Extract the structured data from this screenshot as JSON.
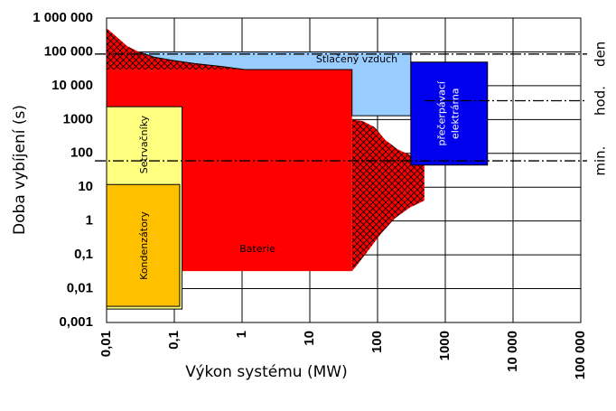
{
  "chart_data": {
    "type": "region",
    "x_label": "Výkon systému (MW)",
    "y_label": "Doba vybíjení (s)",
    "log_x": true,
    "log_y": true,
    "grid": true,
    "xlim": [
      0.01,
      100000
    ],
    "ylim": [
      0.001,
      1000000
    ],
    "xticks": [
      {
        "value": 0.01,
        "label": "0,01"
      },
      {
        "value": 0.1,
        "label": "0,1"
      },
      1,
      10,
      100,
      1000,
      {
        "value": 10000,
        "label": "10 000"
      },
      {
        "value": 100000,
        "label": "100 000"
      }
    ],
    "yticks": [
      {
        "value": 0.001,
        "label": "0,001"
      },
      {
        "value": 0.01,
        "label": "0,01"
      },
      {
        "value": 0.1,
        "label": "0,1"
      },
      1,
      10,
      100,
      1000,
      {
        "value": 10000,
        "label": "10 000"
      },
      {
        "value": 100000,
        "label": "100 000"
      },
      {
        "value": 1000000,
        "label": "1 000 000"
      }
    ],
    "regions": [
      {
        "color": "#ff0000",
        "hatch": true,
        "x": [
          0.01,
          0.015,
          0.02,
          0.03,
          0.05,
          0.1,
          0.2,
          0.5,
          1.1,
          0.01
        ],
        "y": [
          500000,
          250000,
          150000,
          100000,
          70000,
          55000,
          45000,
          37000,
          30000,
          30000
        ]
      },
      {
        "name": "Baterie",
        "color": "#ff0000",
        "hatch": false,
        "x": [
          0.01,
          42,
          42,
          0.01
        ],
        "y": [
          30000,
          30000,
          0.033,
          0.033
        ]
      },
      {
        "name": "Stlačený vzduch",
        "color": "#99ccff",
        "hatch": false,
        "x": [
          0.03,
          310,
          310,
          42,
          42,
          1.1,
          0.5,
          0.2,
          0.1,
          0.05
        ],
        "y": [
          100000,
          100000,
          1300,
          1300,
          30000,
          30000,
          37000,
          45000,
          55000,
          70000
        ]
      },
      {
        "color": "#ff0000",
        "hatch": true,
        "x": [
          42,
          60,
          90,
          130,
          200,
          300,
          490,
          490,
          300,
          180,
          110,
          70,
          50,
          42
        ],
        "y": [
          1000,
          900,
          600,
          250,
          130,
          90,
          60,
          4,
          2.5,
          1.2,
          0.4,
          0.12,
          0.05,
          0.033
        ]
      },
      {
        "name": "přečerpávací elektrárna",
        "color": "#0000ee",
        "hatch": false,
        "x": [
          310,
          4200,
          4200,
          310
        ],
        "y": [
          50000,
          50000,
          45,
          45
        ]
      },
      {
        "name": "Setrvačníky",
        "color": "#ffff80",
        "hatch": false,
        "x": [
          0.01,
          0.13,
          0.13,
          0.01
        ],
        "y": [
          2400,
          2400,
          0.0025,
          0.0025
        ]
      },
      {
        "name": "Kondenzátory",
        "color": "#ffc000",
        "hatch": false,
        "x": [
          0.01,
          0.12,
          0.12,
          0.01
        ],
        "y": [
          12,
          12,
          0.003,
          0.003
        ]
      }
    ],
    "reference_lines": [
      {
        "label": "den",
        "value": 86400
      },
      {
        "label": "hod.",
        "value": 3600
      },
      {
        "label": "min.",
        "value": 60
      }
    ]
  }
}
